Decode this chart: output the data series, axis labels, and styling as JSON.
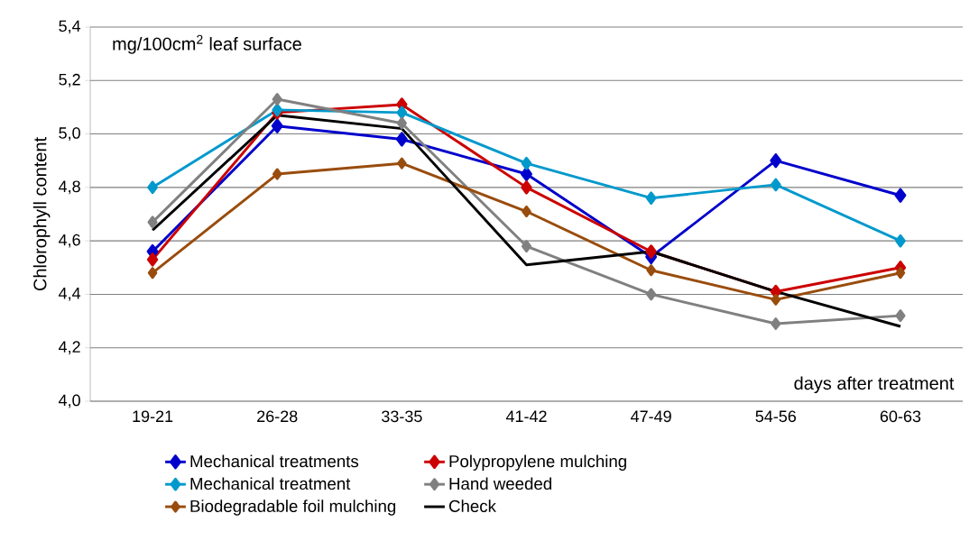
{
  "chart_data": {
    "type": "line",
    "ylabel": "Chlorophyll content",
    "xlabel": "days after treatment",
    "annotations": [
      "mg/100cm$^{2}$ leaf surface"
    ],
    "categories": [
      "19-21",
      "26-28",
      "33-35",
      "41-42",
      "47-49",
      "54-56",
      "60-63"
    ],
    "ylim": [
      4.0,
      5.4
    ],
    "yticks": [
      {
        "value": 4.0,
        "label": "4,0"
      },
      {
        "value": 4.2,
        "label": "4,2"
      },
      {
        "value": 4.4,
        "label": "4,4"
      },
      {
        "value": 4.6,
        "label": "4,6"
      },
      {
        "value": 4.8,
        "label": "4,8"
      },
      {
        "value": 5.0,
        "label": "5,0"
      },
      {
        "value": 5.2,
        "label": "5,2"
      },
      {
        "value": 5.4,
        "label": "5,4"
      }
    ],
    "grid": "y",
    "legend": "bottom",
    "marker": "diamond",
    "line_style": "solid",
    "series": [
      {
        "name": "Mechanical treatments",
        "color": "#0000cc",
        "values": [
          4.56,
          5.03,
          4.98,
          4.85,
          4.54,
          4.9,
          4.77
        ]
      },
      {
        "name": "Polypropylene mulching",
        "color": "#cc0000",
        "values": [
          4.53,
          5.08,
          5.11,
          4.8,
          4.56,
          4.41,
          4.5
        ]
      },
      {
        "name": "Mechanical treatment",
        "color": "#0099cc",
        "values": [
          4.8,
          5.09,
          5.08,
          4.89,
          4.76,
          4.81,
          4.6
        ]
      },
      {
        "name": "Hand weeded",
        "color": "#808080",
        "values": [
          4.67,
          5.13,
          5.04,
          4.58,
          4.4,
          4.29,
          4.32
        ]
      },
      {
        "name": "Biodegradable foil mulching",
        "color": "#994c0c",
        "values": [
          4.48,
          4.85,
          4.89,
          4.71,
          4.49,
          4.38,
          4.48
        ]
      },
      {
        "name": "Check",
        "color": "#000000",
        "marker": "none",
        "values": [
          4.64,
          5.07,
          5.02,
          4.51,
          4.56,
          4.41,
          4.28
        ]
      }
    ]
  }
}
